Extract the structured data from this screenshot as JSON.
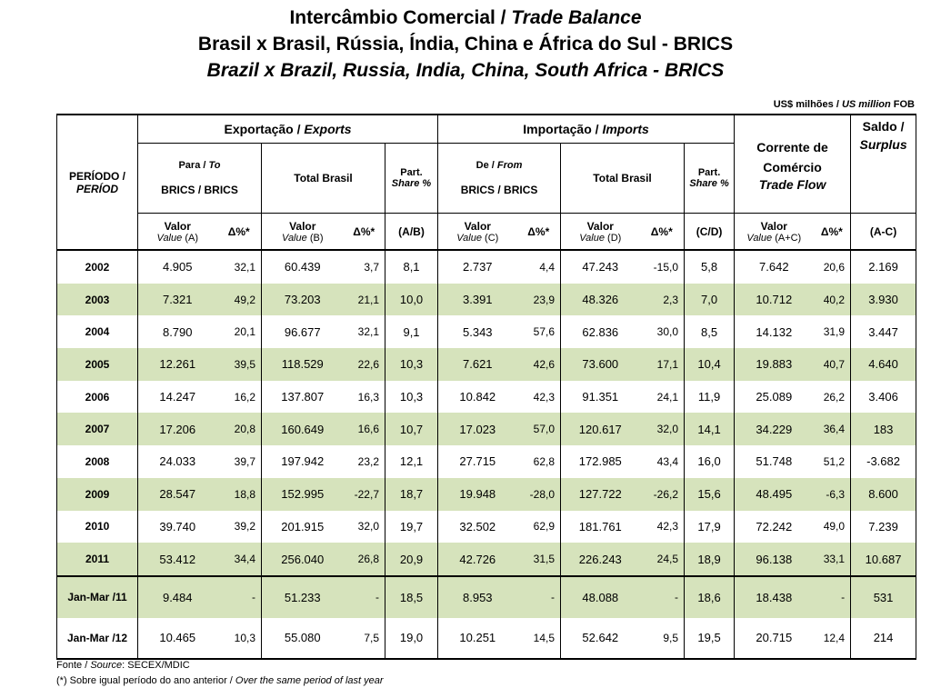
{
  "title": {
    "line1_pt": "Intercâmbio Comercial",
    "line1_sep": " / ",
    "line1_en": "Trade Balance",
    "line2": "Brasil x Brasil, Rússia, Índia, China e África do Sul - BRICS",
    "line3": "Brazil x Brazil, Russia, India, China, South Africa - BRICS"
  },
  "unit": {
    "pt": "US$ milhões",
    "sep": " / ",
    "en": "US million",
    "suffix": " FOB"
  },
  "header": {
    "period_pt": "PERÍODO /",
    "period_en": "PERÍOD",
    "exports_pt": "Exportação",
    "exports_en": "Exports",
    "imports_pt": "Importação",
    "imports_en": "Imports",
    "to_pt": "Para",
    "to_en": "To",
    "from_pt": "De",
    "from_en": "From",
    "brics": "BRICS / BRICS",
    "total_brasil": "Total Brasil",
    "part": "Part.",
    "share": "Share %",
    "trade_pt": "Corrente de Comércio",
    "trade_en": "Trade Flow",
    "saldo_pt": "Saldo /",
    "saldo_en": "Surplus",
    "valor": "Valor",
    "value_a": "Value",
    "a": "(A)",
    "b": "(B)",
    "c": "(C)",
    "d": "(D)",
    "aplusc": "(A+C)",
    "delta": "Δ%*",
    "ab": "(A/B)",
    "cd": "(C/D)",
    "ac": "(A-C)"
  },
  "rows": [
    {
      "period": "2002",
      "exp_brics": "4.905",
      "exp_brics_d": "32,1",
      "exp_total": "60.439",
      "exp_total_d": "3,7",
      "exp_share": "8,1",
      "imp_brics": "2.737",
      "imp_brics_d": "4,4",
      "imp_total": "47.243",
      "imp_total_d": "-15,0",
      "imp_share": "5,8",
      "flow": "7.642",
      "flow_d": "20,6",
      "saldo": "2.169"
    },
    {
      "period": "2003",
      "exp_brics": "7.321",
      "exp_brics_d": "49,2",
      "exp_total": "73.203",
      "exp_total_d": "21,1",
      "exp_share": "10,0",
      "imp_brics": "3.391",
      "imp_brics_d": "23,9",
      "imp_total": "48.326",
      "imp_total_d": "2,3",
      "imp_share": "7,0",
      "flow": "10.712",
      "flow_d": "40,2",
      "saldo": "3.930"
    },
    {
      "period": "2004",
      "exp_brics": "8.790",
      "exp_brics_d": "20,1",
      "exp_total": "96.677",
      "exp_total_d": "32,1",
      "exp_share": "9,1",
      "imp_brics": "5.343",
      "imp_brics_d": "57,6",
      "imp_total": "62.836",
      "imp_total_d": "30,0",
      "imp_share": "8,5",
      "flow": "14.132",
      "flow_d": "31,9",
      "saldo": "3.447"
    },
    {
      "period": "2005",
      "exp_brics": "12.261",
      "exp_brics_d": "39,5",
      "exp_total": "118.529",
      "exp_total_d": "22,6",
      "exp_share": "10,3",
      "imp_brics": "7.621",
      "imp_brics_d": "42,6",
      "imp_total": "73.600",
      "imp_total_d": "17,1",
      "imp_share": "10,4",
      "flow": "19.883",
      "flow_d": "40,7",
      "saldo": "4.640"
    },
    {
      "period": "2006",
      "exp_brics": "14.247",
      "exp_brics_d": "16,2",
      "exp_total": "137.807",
      "exp_total_d": "16,3",
      "exp_share": "10,3",
      "imp_brics": "10.842",
      "imp_brics_d": "42,3",
      "imp_total": "91.351",
      "imp_total_d": "24,1",
      "imp_share": "11,9",
      "flow": "25.089",
      "flow_d": "26,2",
      "saldo": "3.406"
    },
    {
      "period": "2007",
      "exp_brics": "17.206",
      "exp_brics_d": "20,8",
      "exp_total": "160.649",
      "exp_total_d": "16,6",
      "exp_share": "10,7",
      "imp_brics": "17.023",
      "imp_brics_d": "57,0",
      "imp_total": "120.617",
      "imp_total_d": "32,0",
      "imp_share": "14,1",
      "flow": "34.229",
      "flow_d": "36,4",
      "saldo": "183"
    },
    {
      "period": "2008",
      "exp_brics": "24.033",
      "exp_brics_d": "39,7",
      "exp_total": "197.942",
      "exp_total_d": "23,2",
      "exp_share": "12,1",
      "imp_brics": "27.715",
      "imp_brics_d": "62,8",
      "imp_total": "172.985",
      "imp_total_d": "43,4",
      "imp_share": "16,0",
      "flow": "51.748",
      "flow_d": "51,2",
      "saldo": "-3.682"
    },
    {
      "period": "2009",
      "exp_brics": "28.547",
      "exp_brics_d": "18,8",
      "exp_total": "152.995",
      "exp_total_d": "-22,7",
      "exp_share": "18,7",
      "imp_brics": "19.948",
      "imp_brics_d": "-28,0",
      "imp_total": "127.722",
      "imp_total_d": "-26,2",
      "imp_share": "15,6",
      "flow": "48.495",
      "flow_d": "-6,3",
      "saldo": "8.600"
    },
    {
      "period": "2010",
      "exp_brics": "39.740",
      "exp_brics_d": "39,2",
      "exp_total": "201.915",
      "exp_total_d": "32,0",
      "exp_share": "19,7",
      "imp_brics": "32.502",
      "imp_brics_d": "62,9",
      "imp_total": "181.761",
      "imp_total_d": "42,3",
      "imp_share": "17,9",
      "flow": "72.242",
      "flow_d": "49,0",
      "saldo": "7.239"
    },
    {
      "period": "2011",
      "exp_brics": "53.412",
      "exp_brics_d": "34,4",
      "exp_total": "256.040",
      "exp_total_d": "26,8",
      "exp_share": "20,9",
      "imp_brics": "42.726",
      "imp_brics_d": "31,5",
      "imp_total": "226.243",
      "imp_total_d": "24,5",
      "imp_share": "18,9",
      "flow": "96.138",
      "flow_d": "33,1",
      "saldo": "10.687"
    },
    {
      "period": "Jan-Mar /11",
      "exp_brics": "9.484",
      "exp_brics_d": "-",
      "exp_total": "51.233",
      "exp_total_d": "-",
      "exp_share": "18,5",
      "imp_brics": "8.953",
      "imp_brics_d": "-",
      "imp_total": "48.088",
      "imp_total_d": "-",
      "imp_share": "18,6",
      "flow": "18.438",
      "flow_d": "-",
      "saldo": "531"
    },
    {
      "period": "Jan-Mar /12",
      "exp_brics": "10.465",
      "exp_brics_d": "10,3",
      "exp_total": "55.080",
      "exp_total_d": "7,5",
      "exp_share": "19,0",
      "imp_brics": "10.251",
      "imp_brics_d": "14,5",
      "imp_total": "52.642",
      "imp_total_d": "9,5",
      "imp_share": "19,5",
      "flow": "20.715",
      "flow_d": "12,4",
      "saldo": "214"
    }
  ],
  "footnotes": {
    "source_pt": "Fonte",
    "source_en": "Source",
    "source_val": ": SECEX/MDIC",
    "note_pt": "(*) Sobre igual período do ano anterior /",
    "note_en": "Over the same period of last year"
  },
  "colors": {
    "shade": "#d6e3bc",
    "border": "#000000"
  }
}
